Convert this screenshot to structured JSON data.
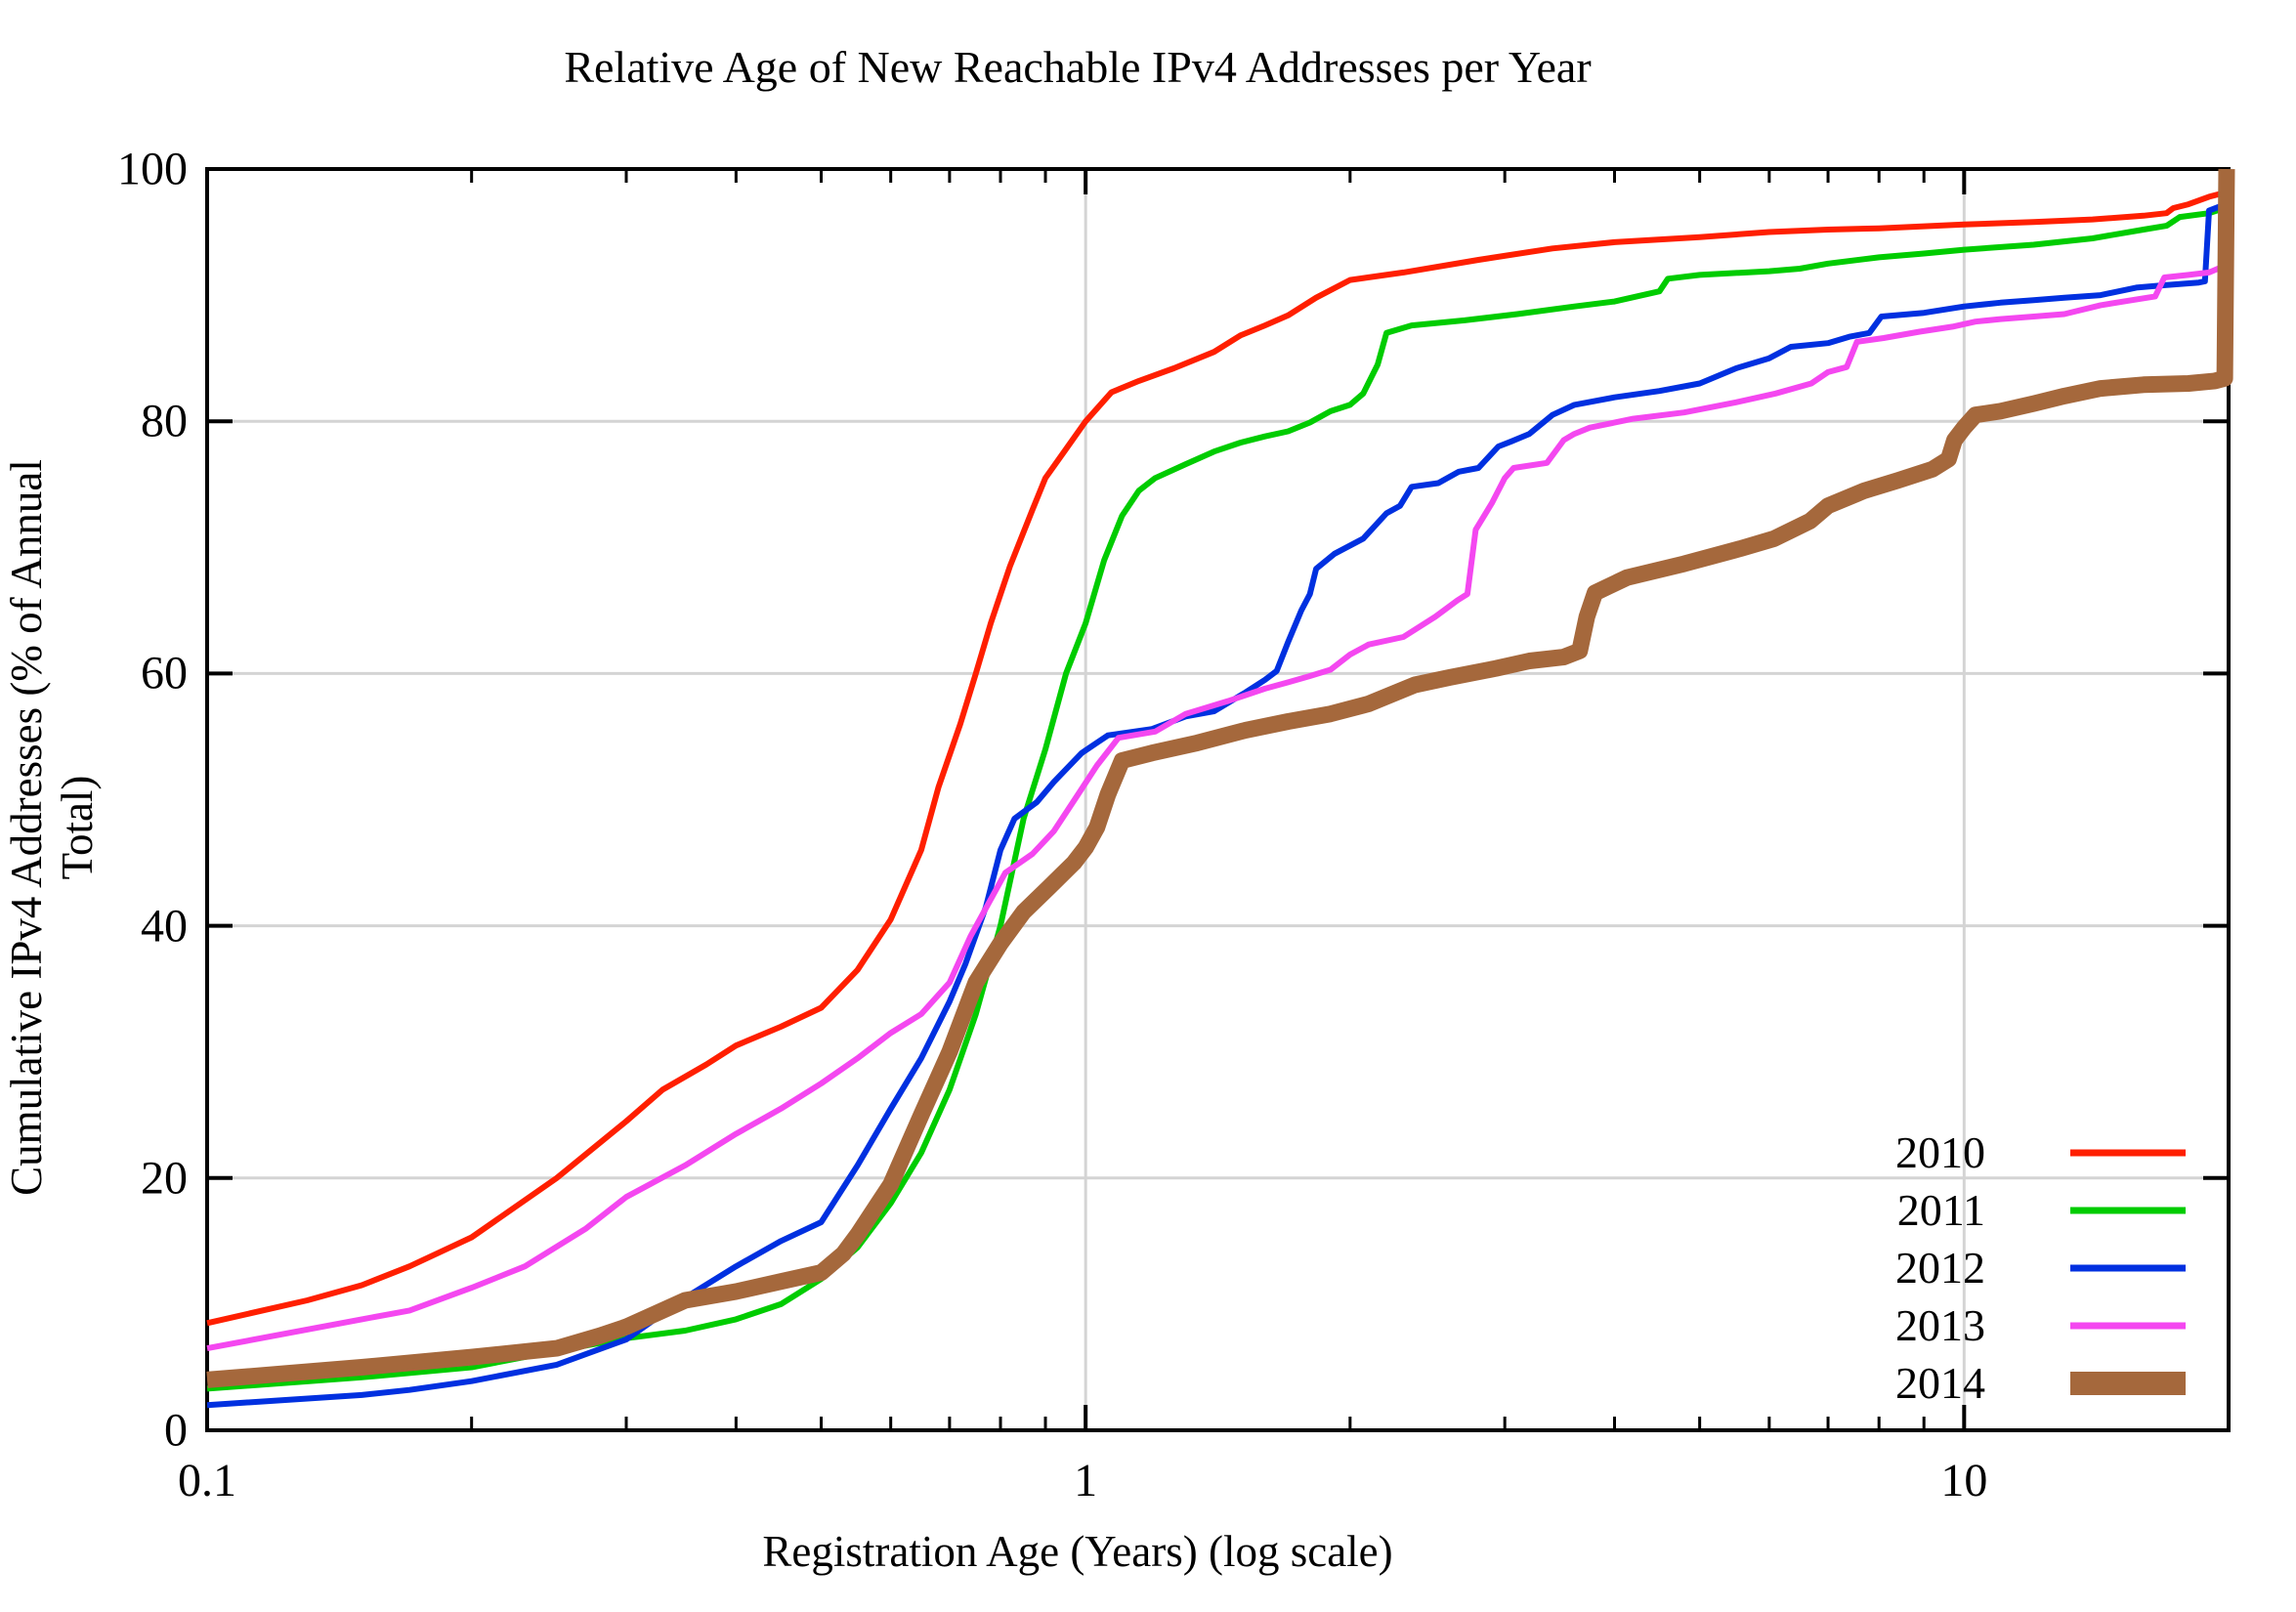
{
  "chart_data": {
    "type": "line",
    "title": "Relative Age of New Reachable IPv4 Addresses per Year",
    "xlabel": "Registration Age (Years) (log scale)",
    "ylabel": "Cumulative IPv4 Addresses (% of Annual Total)",
    "x_scale": "log",
    "xlim": [
      0.1,
      20
    ],
    "ylim": [
      0,
      100
    ],
    "background_color": "#ffffff",
    "axis_color": "#000000",
    "grid_color": "#d4d4d4",
    "grid_on": true,
    "x_major_ticks": [
      {
        "v": 0.1,
        "label": "0.1"
      },
      {
        "v": 1,
        "label": "1"
      },
      {
        "v": 10,
        "label": "10"
      }
    ],
    "x_minor_ticks": [
      0.2,
      0.3,
      0.4,
      0.5,
      0.6,
      0.7,
      0.8,
      0.9,
      2,
      3,
      4,
      5,
      6,
      7,
      8,
      9,
      20
    ],
    "y_ticks": [
      0,
      20,
      40,
      60,
      80,
      100
    ],
    "grid_x": [
      1,
      10
    ],
    "grid_y": [
      20,
      40,
      60,
      80
    ],
    "legend_position": "inside-bottom-right",
    "series": [
      {
        "name": "2010",
        "color": "#ff1f00",
        "width": 6,
        "points": [
          [
            0.1,
            8.5
          ],
          [
            0.13,
            10.3
          ],
          [
            0.15,
            11.5
          ],
          [
            0.17,
            13
          ],
          [
            0.2,
            15.3
          ],
          [
            0.25,
            20
          ],
          [
            0.3,
            24.5
          ],
          [
            0.33,
            27
          ],
          [
            0.37,
            29
          ],
          [
            0.4,
            30.5
          ],
          [
            0.45,
            32
          ],
          [
            0.5,
            33.5
          ],
          [
            0.55,
            36.5
          ],
          [
            0.6,
            40.5
          ],
          [
            0.65,
            46
          ],
          [
            0.68,
            51
          ],
          [
            0.72,
            56
          ],
          [
            0.75,
            60
          ],
          [
            0.78,
            64
          ],
          [
            0.82,
            68.5
          ],
          [
            0.87,
            73
          ],
          [
            0.9,
            75.5
          ],
          [
            0.95,
            77.8
          ],
          [
            1.0,
            80
          ],
          [
            1.07,
            82.3
          ],
          [
            1.15,
            83.2
          ],
          [
            1.26,
            84.2
          ],
          [
            1.4,
            85.5
          ],
          [
            1.5,
            86.8
          ],
          [
            1.6,
            87.6
          ],
          [
            1.7,
            88.4
          ],
          [
            1.83,
            89.8
          ],
          [
            2.0,
            91.2
          ],
          [
            2.3,
            91.8
          ],
          [
            2.8,
            92.8
          ],
          [
            3.4,
            93.7
          ],
          [
            4,
            94.2
          ],
          [
            5,
            94.6
          ],
          [
            6,
            95.0
          ],
          [
            7,
            95.2
          ],
          [
            8,
            95.3
          ],
          [
            10,
            95.6
          ],
          [
            12,
            95.8
          ],
          [
            14,
            96.0
          ],
          [
            16,
            96.3
          ],
          [
            17,
            96.5
          ],
          [
            17.3,
            96.9
          ],
          [
            18,
            97.2
          ],
          [
            19,
            97.8
          ],
          [
            20,
            98.2
          ]
        ]
      },
      {
        "name": "2011",
        "color": "#00cc00",
        "width": 6,
        "points": [
          [
            0.1,
            3.3
          ],
          [
            0.15,
            4.2
          ],
          [
            0.2,
            5.0
          ],
          [
            0.25,
            6.3
          ],
          [
            0.3,
            7.3
          ],
          [
            0.35,
            7.9
          ],
          [
            0.4,
            8.8
          ],
          [
            0.45,
            10
          ],
          [
            0.5,
            12
          ],
          [
            0.55,
            14.5
          ],
          [
            0.6,
            18
          ],
          [
            0.65,
            22
          ],
          [
            0.7,
            27
          ],
          [
            0.75,
            33
          ],
          [
            0.8,
            40
          ],
          [
            0.85,
            48.5
          ],
          [
            0.9,
            54
          ],
          [
            0.95,
            60
          ],
          [
            1.0,
            64
          ],
          [
            1.05,
            69
          ],
          [
            1.1,
            72.5
          ],
          [
            1.15,
            74.5
          ],
          [
            1.2,
            75.5
          ],
          [
            1.3,
            76.6
          ],
          [
            1.4,
            77.6
          ],
          [
            1.5,
            78.3
          ],
          [
            1.6,
            78.8
          ],
          [
            1.7,
            79.2
          ],
          [
            1.8,
            79.9
          ],
          [
            1.9,
            80.8
          ],
          [
            2.0,
            81.3
          ],
          [
            2.07,
            82.2
          ],
          [
            2.15,
            84.5
          ],
          [
            2.2,
            87.0
          ],
          [
            2.35,
            87.6
          ],
          [
            2.7,
            88.0
          ],
          [
            3.1,
            88.5
          ],
          [
            3.6,
            89.1
          ],
          [
            4.0,
            89.5
          ],
          [
            4.5,
            90.3
          ],
          [
            4.6,
            91.3
          ],
          [
            5,
            91.6
          ],
          [
            6,
            91.9
          ],
          [
            6.5,
            92.1
          ],
          [
            7,
            92.5
          ],
          [
            8,
            93.0
          ],
          [
            9,
            93.3
          ],
          [
            10,
            93.6
          ],
          [
            12,
            94.0
          ],
          [
            14,
            94.5
          ],
          [
            16,
            95.2
          ],
          [
            17,
            95.5
          ],
          [
            17.6,
            96.2
          ],
          [
            19,
            96.5
          ],
          [
            19.6,
            96.8
          ],
          [
            20,
            97.3
          ]
        ]
      },
      {
        "name": "2012",
        "color": "#0030e0",
        "width": 6,
        "points": [
          [
            0.1,
            2.0
          ],
          [
            0.15,
            2.8
          ],
          [
            0.17,
            3.2
          ],
          [
            0.2,
            3.9
          ],
          [
            0.25,
            5.2
          ],
          [
            0.3,
            7.2
          ],
          [
            0.35,
            10.5
          ],
          [
            0.4,
            13
          ],
          [
            0.45,
            15
          ],
          [
            0.5,
            16.5
          ],
          [
            0.55,
            21
          ],
          [
            0.6,
            25.5
          ],
          [
            0.65,
            29.5
          ],
          [
            0.7,
            34
          ],
          [
            0.73,
            37
          ],
          [
            0.77,
            41.5
          ],
          [
            0.8,
            46
          ],
          [
            0.83,
            48.5
          ],
          [
            0.88,
            49.8
          ],
          [
            0.92,
            51.4
          ],
          [
            0.99,
            53.7
          ],
          [
            1.06,
            55.1
          ],
          [
            1.19,
            55.6
          ],
          [
            1.3,
            56.6
          ],
          [
            1.4,
            57.0
          ],
          [
            1.52,
            58.5
          ],
          [
            1.6,
            59.5
          ],
          [
            1.65,
            60.2
          ],
          [
            1.7,
            62.5
          ],
          [
            1.76,
            65
          ],
          [
            1.8,
            66.3
          ],
          [
            1.83,
            68.3
          ],
          [
            1.92,
            69.5
          ],
          [
            2.07,
            70.7
          ],
          [
            2.2,
            72.7
          ],
          [
            2.28,
            73.3
          ],
          [
            2.35,
            74.8
          ],
          [
            2.52,
            75.1
          ],
          [
            2.66,
            76.0
          ],
          [
            2.8,
            76.3
          ],
          [
            2.95,
            78
          ],
          [
            3.05,
            78.4
          ],
          [
            3.2,
            79
          ],
          [
            3.4,
            80.5
          ],
          [
            3.6,
            81.3
          ],
          [
            4,
            81.9
          ],
          [
            4.5,
            82.4
          ],
          [
            5,
            83
          ],
          [
            5.5,
            84.2
          ],
          [
            6,
            85
          ],
          [
            6.35,
            85.9
          ],
          [
            7,
            86.2
          ],
          [
            7.4,
            86.7
          ],
          [
            7.8,
            87
          ],
          [
            8.05,
            88.3
          ],
          [
            9,
            88.6
          ],
          [
            10,
            89.1
          ],
          [
            11,
            89.4
          ],
          [
            12,
            89.6
          ],
          [
            13,
            89.8
          ],
          [
            14.3,
            90.0
          ],
          [
            15.7,
            90.6
          ],
          [
            17,
            90.8
          ],
          [
            18.5,
            91.0
          ],
          [
            18.8,
            91.1
          ],
          [
            19.0,
            96.7
          ],
          [
            19.5,
            97.0
          ],
          [
            20,
            97.3
          ]
        ]
      },
      {
        "name": "2013",
        "color": "#f447f0",
        "width": 6,
        "points": [
          [
            0.1,
            6.5
          ],
          [
            0.15,
            8.8
          ],
          [
            0.17,
            9.5
          ],
          [
            0.2,
            11.3
          ],
          [
            0.23,
            13
          ],
          [
            0.27,
            16
          ],
          [
            0.3,
            18.5
          ],
          [
            0.35,
            21
          ],
          [
            0.4,
            23.5
          ],
          [
            0.45,
            25.5
          ],
          [
            0.5,
            27.5
          ],
          [
            0.55,
            29.5
          ],
          [
            0.6,
            31.5
          ],
          [
            0.65,
            33
          ],
          [
            0.7,
            35.5
          ],
          [
            0.74,
            39.2
          ],
          [
            0.81,
            44.2
          ],
          [
            0.87,
            45.7
          ],
          [
            0.92,
            47.5
          ],
          [
            0.98,
            50.4
          ],
          [
            1.03,
            52.7
          ],
          [
            1.09,
            54.9
          ],
          [
            1.2,
            55.4
          ],
          [
            1.3,
            56.8
          ],
          [
            1.45,
            57.8
          ],
          [
            1.6,
            58.8
          ],
          [
            1.7,
            59.3
          ],
          [
            1.8,
            59.8
          ],
          [
            1.9,
            60.3
          ],
          [
            2.0,
            61.5
          ],
          [
            2.1,
            62.3
          ],
          [
            2.3,
            62.9
          ],
          [
            2.5,
            64.5
          ],
          [
            2.65,
            65.8
          ],
          [
            2.72,
            66.3
          ],
          [
            2.78,
            71.4
          ],
          [
            2.9,
            73.5
          ],
          [
            3.0,
            75.5
          ],
          [
            3.07,
            76.3
          ],
          [
            3.35,
            76.7
          ],
          [
            3.5,
            78.5
          ],
          [
            3.6,
            79.0
          ],
          [
            3.75,
            79.5
          ],
          [
            4.2,
            80.2
          ],
          [
            4.8,
            80.7
          ],
          [
            5.5,
            81.5
          ],
          [
            6.1,
            82.2
          ],
          [
            6.7,
            83.0
          ],
          [
            7.0,
            83.9
          ],
          [
            7.35,
            84.3
          ],
          [
            7.55,
            86.3
          ],
          [
            8.1,
            86.6
          ],
          [
            8.9,
            87.1
          ],
          [
            9.7,
            87.5
          ],
          [
            10.3,
            87.9
          ],
          [
            11,
            88.1
          ],
          [
            12,
            88.3
          ],
          [
            13,
            88.5
          ],
          [
            14.3,
            89.2
          ],
          [
            15.5,
            89.6
          ],
          [
            16.5,
            89.9
          ],
          [
            16.9,
            91.4
          ],
          [
            18,
            91.6
          ],
          [
            19,
            91.8
          ],
          [
            19.6,
            92.2
          ],
          [
            20,
            92.8
          ]
        ]
      },
      {
        "name": "2014",
        "color": "#a5683c",
        "width": 17,
        "points": [
          [
            0.1,
            4.0
          ],
          [
            0.15,
            5.0
          ],
          [
            0.2,
            5.8
          ],
          [
            0.25,
            6.5
          ],
          [
            0.28,
            7.5
          ],
          [
            0.3,
            8.2
          ],
          [
            0.33,
            9.5
          ],
          [
            0.35,
            10.3
          ],
          [
            0.4,
            11
          ],
          [
            0.45,
            11.8
          ],
          [
            0.5,
            12.5
          ],
          [
            0.53,
            14
          ],
          [
            0.55,
            15.5
          ],
          [
            0.6,
            19.5
          ],
          [
            0.65,
            25
          ],
          [
            0.7,
            30
          ],
          [
            0.75,
            35.5
          ],
          [
            0.8,
            38.6
          ],
          [
            0.85,
            41.1
          ],
          [
            0.91,
            43.1
          ],
          [
            0.97,
            45.0
          ],
          [
            1.0,
            46.2
          ],
          [
            1.03,
            47.8
          ],
          [
            1.06,
            50.4
          ],
          [
            1.1,
            53.1
          ],
          [
            1.19,
            53.7
          ],
          [
            1.34,
            54.5
          ],
          [
            1.52,
            55.5
          ],
          [
            1.7,
            56.2
          ],
          [
            1.9,
            56.8
          ],
          [
            2.1,
            57.6
          ],
          [
            2.37,
            59.1
          ],
          [
            2.6,
            59.7
          ],
          [
            2.93,
            60.4
          ],
          [
            3.2,
            61.0
          ],
          [
            3.5,
            61.3
          ],
          [
            3.65,
            61.8
          ],
          [
            3.72,
            64.5
          ],
          [
            3.8,
            66.4
          ],
          [
            4.13,
            67.6
          ],
          [
            4.8,
            68.7
          ],
          [
            5.56,
            69.9
          ],
          [
            6.08,
            70.7
          ],
          [
            6.68,
            72.1
          ],
          [
            7.0,
            73.3
          ],
          [
            7.7,
            74.5
          ],
          [
            8.4,
            75.3
          ],
          [
            9.2,
            76.2
          ],
          [
            9.6,
            77
          ],
          [
            9.75,
            78.5
          ],
          [
            10,
            79.5
          ],
          [
            10.3,
            80.5
          ],
          [
            11,
            80.8
          ],
          [
            12,
            81.4
          ],
          [
            13,
            82.0
          ],
          [
            14.3,
            82.6
          ],
          [
            16,
            82.9
          ],
          [
            18,
            83.0
          ],
          [
            19.3,
            83.2
          ],
          [
            19.8,
            83.4
          ],
          [
            19.9,
            100
          ]
        ]
      }
    ]
  }
}
